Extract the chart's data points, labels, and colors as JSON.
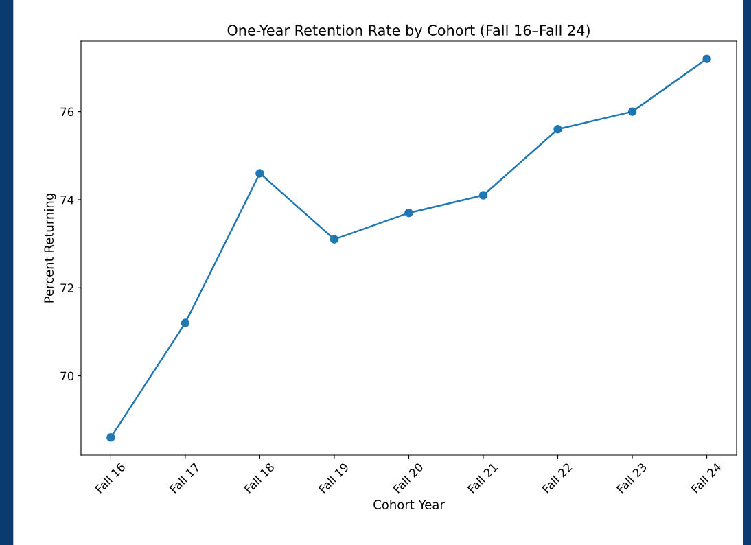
{
  "chart_data": {
    "type": "line",
    "title": "One-Year Retention Rate by Cohort (Fall 16–Fall 24)",
    "xlabel": "Cohort Year",
    "ylabel": "Percent Returning",
    "categories": [
      "Fall 16",
      "Fall 17",
      "Fall 18",
      "Fall 19",
      "Fall 20",
      "Fall 21",
      "Fall 22",
      "Fall 23",
      "Fall 24"
    ],
    "series": [
      {
        "color": "#1f77b4",
        "values": [
          68.6,
          71.2,
          74.6,
          73.1,
          73.7,
          74.1,
          75.6,
          76.0,
          77.2
        ]
      }
    ],
    "ylim": [
      68.2,
      77.6
    ],
    "yticks": [
      70,
      72,
      74,
      76
    ],
    "marker": "circle",
    "line_style": "solid",
    "grid": false,
    "legend": false
  }
}
